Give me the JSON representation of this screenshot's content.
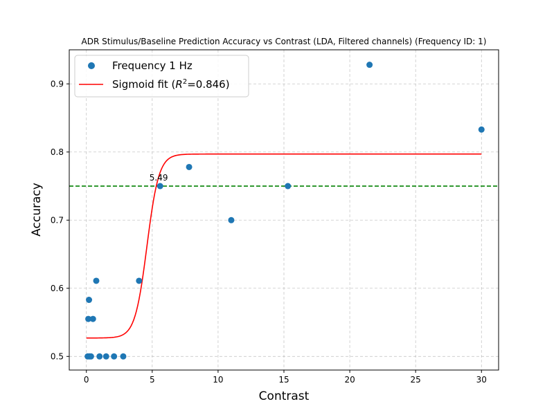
{
  "chart_data": {
    "type": "scatter",
    "title": "ADR Stimulus/Baseline Prediction Accuracy vs Contrast (LDA, Filtered channels) (Frequency ID: 1)",
    "xlabel": "Contrast",
    "ylabel": "Accuracy",
    "xlim": [
      -1.3,
      31.3
    ],
    "ylim": [
      0.48,
      0.95
    ],
    "xticks": [
      0,
      5,
      10,
      15,
      20,
      25,
      30
    ],
    "yticks": [
      0.5,
      0.6,
      0.7,
      0.8,
      0.9
    ],
    "xtick_labels": [
      "0",
      "5",
      "10",
      "15",
      "20",
      "25",
      "30"
    ],
    "ytick_labels": [
      "0.5",
      "0.6",
      "0.7",
      "0.8",
      "0.9"
    ],
    "grid": true,
    "legend_position": "top-left",
    "series": [
      {
        "name": "Frequency 1 Hz",
        "kind": "scatter",
        "color": "#1f77b4",
        "x": [
          0.1,
          0.15,
          0.2,
          0.25,
          0.35,
          0.5,
          0.75,
          1.0,
          1.5,
          2.1,
          2.8,
          4.0,
          5.6,
          7.8,
          11.0,
          15.3,
          21.5,
          30.0
        ],
        "y": [
          0.5,
          0.555,
          0.583,
          0.5,
          0.5,
          0.555,
          0.611,
          0.5,
          0.5,
          0.5,
          0.5,
          0.611,
          0.75,
          0.778,
          0.7,
          0.75,
          0.928,
          0.833
        ]
      },
      {
        "name": "Sigmoid fit ($R^2$=0.846)",
        "legend_label_main": "Sigmoid fit (",
        "legend_label_sup_base": "R",
        "legend_label_sup": "2",
        "legend_label_tail": "=0.846)",
        "kind": "line",
        "color": "#ff0000",
        "model": {
          "lower": 0.527,
          "upper": 0.797,
          "midpoint": 4.6,
          "slope": 2.2
        },
        "x_range": [
          0.0,
          30.0
        ]
      }
    ],
    "threshold": {
      "y": 0.75,
      "color": "#008000",
      "style": "dashed"
    },
    "annotations": [
      {
        "text": "5.49",
        "x": 5.49,
        "y": 0.75
      }
    ]
  }
}
